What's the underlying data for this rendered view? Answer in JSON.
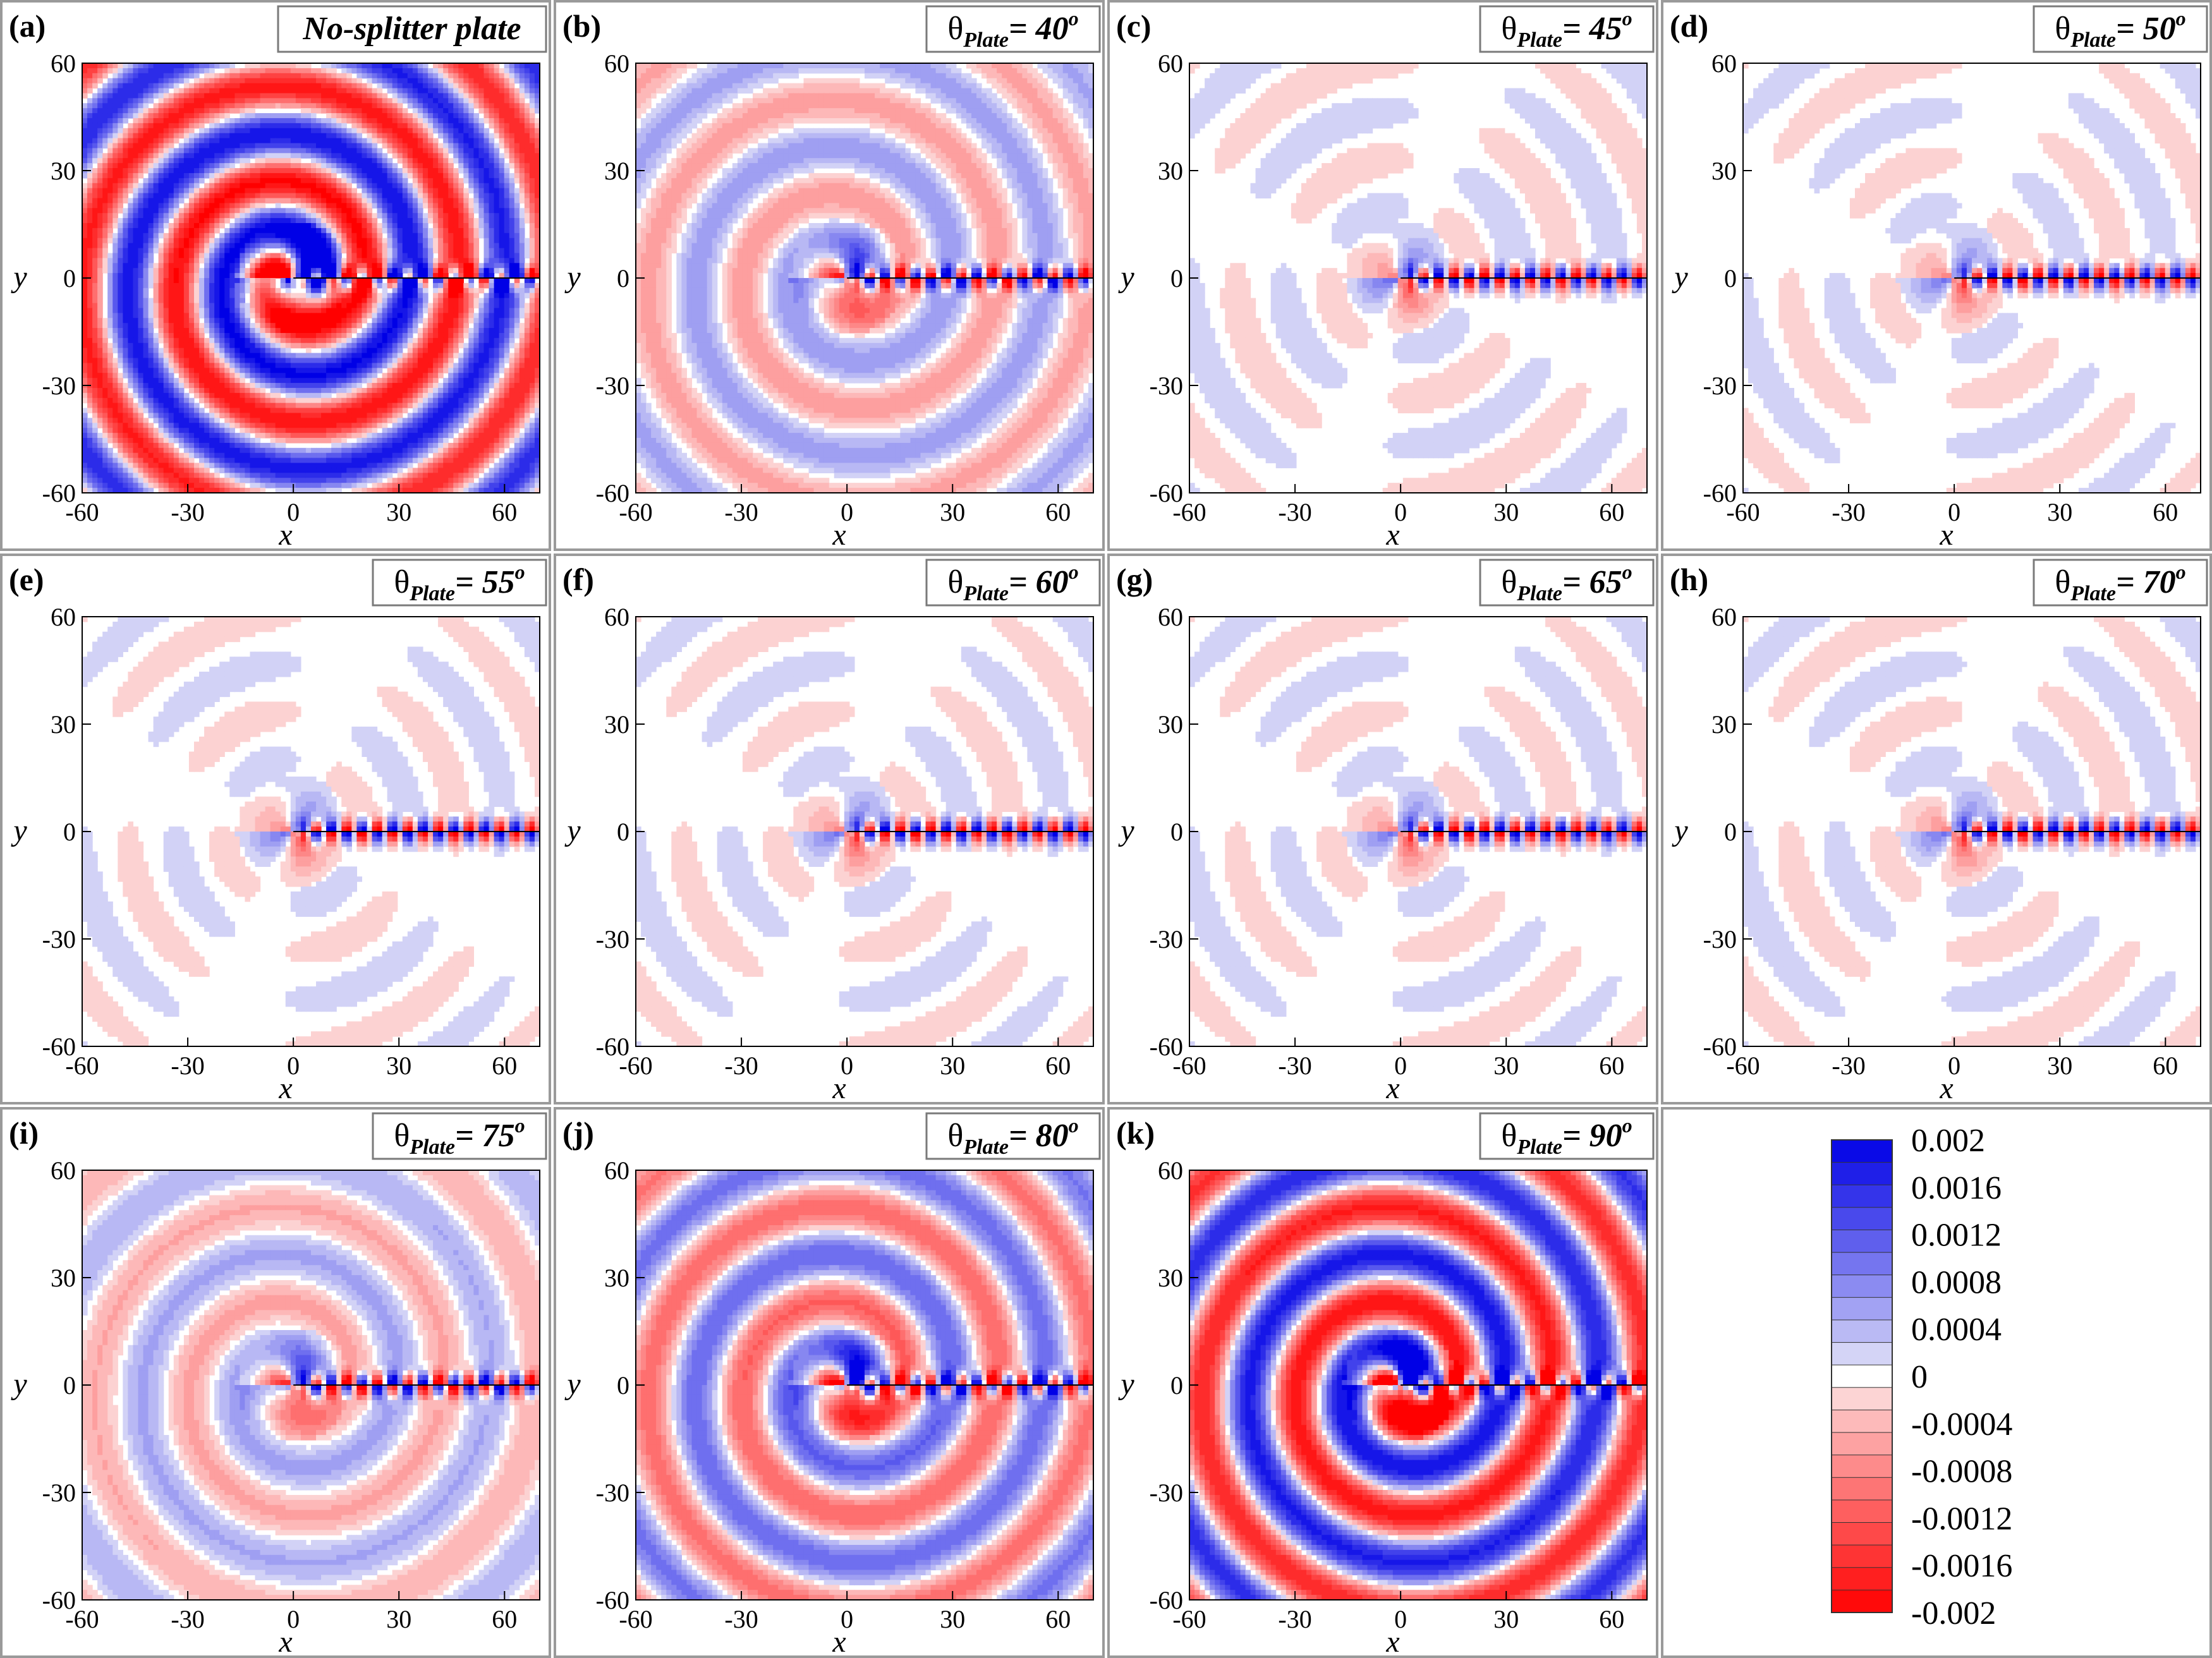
{
  "figure": {
    "colors": {
      "positive_max": "#0000e6",
      "zero": "#ffffff",
      "negative_max": "#ff0000",
      "panel_border": "#9a9a9a",
      "contour_line": "#000000"
    }
  },
  "chart_data": [
    {
      "type": "heatmap",
      "panel": "(a)",
      "label_text": "No-splitter plate",
      "angle_value": null,
      "amplitude": 1.0,
      "pattern": "spiral-symmetric",
      "xlabel": "x",
      "ylabel": "y",
      "xlim": [
        -60,
        70
      ],
      "ylim": [
        -60,
        60
      ],
      "xticks": [
        -60,
        -30,
        0,
        30,
        60
      ],
      "yticks": [
        -60,
        -30,
        0,
        30,
        60
      ]
    },
    {
      "type": "heatmap",
      "panel": "(b)",
      "label_prefix": "θ",
      "label_sub": "Plate",
      "label_eq": "=",
      "angle_value": "40",
      "angle_unit": "o",
      "amplitude": 0.35,
      "pattern": "spiral",
      "xlabel": "x",
      "ylabel": "y",
      "xlim": [
        -60,
        70
      ],
      "ylim": [
        -60,
        60
      ],
      "xticks": [
        -60,
        -30,
        0,
        30,
        60
      ],
      "yticks": [
        -60,
        -30,
        0,
        30,
        60
      ]
    },
    {
      "type": "heatmap",
      "panel": "(c)",
      "label_prefix": "θ",
      "label_sub": "Plate",
      "label_eq": "=",
      "angle_value": "45",
      "angle_unit": "o",
      "amplitude": 0.15,
      "pattern": "lobed",
      "xlabel": "x",
      "ylabel": "y",
      "xlim": [
        -60,
        70
      ],
      "ylim": [
        -60,
        60
      ],
      "xticks": [
        -60,
        -30,
        0,
        30,
        60
      ],
      "yticks": [
        -60,
        -30,
        0,
        30,
        60
      ]
    },
    {
      "type": "heatmap",
      "panel": "(d)",
      "label_prefix": "θ",
      "label_sub": "Plate",
      "label_eq": "=",
      "angle_value": "50",
      "angle_unit": "o",
      "amplitude": 0.12,
      "pattern": "lobed",
      "xlabel": "x",
      "ylabel": "y",
      "xlim": [
        -60,
        70
      ],
      "ylim": [
        -60,
        60
      ],
      "xticks": [
        -60,
        -30,
        0,
        30,
        60
      ],
      "yticks": [
        -60,
        -30,
        0,
        30,
        60
      ]
    },
    {
      "type": "heatmap",
      "panel": "(e)",
      "label_prefix": "θ",
      "label_sub": "Plate",
      "label_eq": "=",
      "angle_value": "55",
      "angle_unit": "o",
      "amplitude": 0.12,
      "pattern": "lobed",
      "xlabel": "x",
      "ylabel": "y",
      "xlim": [
        -60,
        70
      ],
      "ylim": [
        -60,
        60
      ],
      "xticks": [
        -60,
        -30,
        0,
        30,
        60
      ],
      "yticks": [
        -60,
        -30,
        0,
        30,
        60
      ]
    },
    {
      "type": "heatmap",
      "panel": "(f)",
      "label_prefix": "θ",
      "label_sub": "Plate",
      "label_eq": "=",
      "angle_value": "60",
      "angle_unit": "o",
      "amplitude": 0.12,
      "pattern": "lobed",
      "xlabel": "x",
      "ylabel": "y",
      "xlim": [
        -60,
        70
      ],
      "ylim": [
        -60,
        60
      ],
      "xticks": [
        -60,
        -30,
        0,
        30,
        60
      ],
      "yticks": [
        -60,
        -30,
        0,
        30,
        60
      ]
    },
    {
      "type": "heatmap",
      "panel": "(g)",
      "label_prefix": "θ",
      "label_sub": "Plate",
      "label_eq": "=",
      "angle_value": "65",
      "angle_unit": "o",
      "amplitude": 0.12,
      "pattern": "lobed",
      "xlabel": "x",
      "ylabel": "y",
      "xlim": [
        -60,
        70
      ],
      "ylim": [
        -60,
        60
      ],
      "xticks": [
        -60,
        -30,
        0,
        30,
        60
      ],
      "yticks": [
        -60,
        -30,
        0,
        30,
        60
      ]
    },
    {
      "type": "heatmap",
      "panel": "(h)",
      "label_prefix": "θ",
      "label_sub": "Plate",
      "label_eq": "=",
      "angle_value": "70",
      "angle_unit": "o",
      "amplitude": 0.13,
      "pattern": "lobed",
      "xlabel": "x",
      "ylabel": "y",
      "xlim": [
        -60,
        70
      ],
      "ylim": [
        -60,
        60
      ],
      "xticks": [
        -60,
        -30,
        0,
        30,
        60
      ],
      "yticks": [
        -60,
        -30,
        0,
        30,
        60
      ]
    },
    {
      "type": "heatmap",
      "panel": "(i)",
      "label_prefix": "θ",
      "label_sub": "Plate",
      "label_eq": "=",
      "angle_value": "75",
      "angle_unit": "o",
      "amplitude": 0.3,
      "pattern": "spiral",
      "xlabel": "x",
      "ylabel": "y",
      "xlim": [
        -60,
        70
      ],
      "ylim": [
        -60,
        60
      ],
      "xticks": [
        -60,
        -30,
        0,
        30,
        60
      ],
      "yticks": [
        -60,
        -30,
        0,
        30,
        60
      ]
    },
    {
      "type": "heatmap",
      "panel": "(j)",
      "label_prefix": "θ",
      "label_sub": "Plate",
      "label_eq": "=",
      "angle_value": "80",
      "angle_unit": "o",
      "amplitude": 0.6,
      "pattern": "spiral",
      "xlabel": "x",
      "ylabel": "y",
      "xlim": [
        -60,
        70
      ],
      "ylim": [
        -60,
        60
      ],
      "xticks": [
        -60,
        -30,
        0,
        30,
        60
      ],
      "yticks": [
        -60,
        -30,
        0,
        30,
        60
      ]
    },
    {
      "type": "heatmap",
      "panel": "(k)",
      "label_prefix": "θ",
      "label_sub": "Plate",
      "label_eq": "=",
      "angle_value": "90",
      "angle_unit": "o",
      "amplitude": 1.0,
      "pattern": "spiral",
      "xlabel": "x",
      "ylabel": "y",
      "xlim": [
        -60,
        70
      ],
      "ylim": [
        -60,
        60
      ],
      "xticks": [
        -60,
        -30,
        0,
        30,
        60
      ],
      "yticks": [
        -60,
        -30,
        0,
        30,
        60
      ]
    }
  ],
  "colorbar": {
    "min": -0.002,
    "max": 0.002,
    "levels": 21,
    "tick_values": [
      0.002,
      0.0016,
      0.0012,
      0.0008,
      0.0004,
      0,
      -0.0004,
      -0.0008,
      -0.0012,
      -0.0016,
      -0.002
    ],
    "tick_labels": [
      "0.002",
      "0.0016",
      "0.0012",
      "0.0008",
      "0.0004",
      "0",
      "-0.0004",
      "-0.0008",
      "-0.0012",
      "-0.0016",
      "-0.002"
    ]
  }
}
